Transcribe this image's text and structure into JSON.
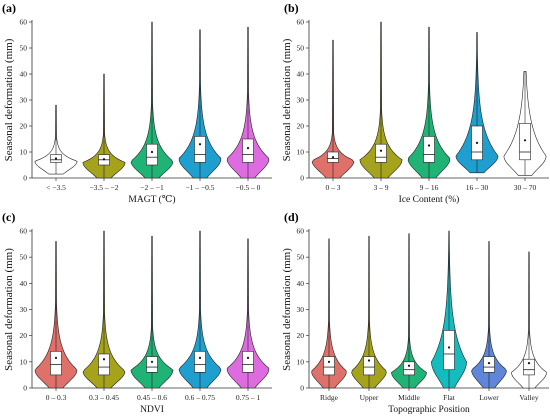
{
  "chart_data": [
    {
      "panel": "(a)",
      "type": "violin",
      "xlabel": "MAGT (℃)",
      "ylabel": "Seasonal deformation (mm)",
      "ylim": [
        0,
        60
      ],
      "yticks": [
        0,
        10,
        20,
        30,
        40,
        50,
        60
      ],
      "categories": [
        "< −3.5",
        "−3.5 – −2",
        "−2 – −1",
        "−1 – −0.5",
        "−0.5 – 0"
      ],
      "colors": [
        "#ffffff",
        "#a5a21c",
        "#1fb476",
        "#1f9ed0",
        "#df6be0"
      ],
      "stats": [
        {
          "min": 1.5,
          "q1": 6,
          "median": 7,
          "q3": 9,
          "max": 28,
          "mean": 7.5
        },
        {
          "min": 0,
          "q1": 5,
          "median": 7,
          "q3": 9,
          "max": 40,
          "mean": 7.2
        },
        {
          "min": 0,
          "q1": 5,
          "median": 8,
          "q3": 13,
          "max": 60,
          "mean": 10
        },
        {
          "min": 0,
          "q1": 6,
          "median": 9,
          "q3": 16,
          "max": 57,
          "mean": 13
        },
        {
          "min": 0,
          "q1": 6,
          "median": 9,
          "q3": 15,
          "max": 58,
          "mean": 11.5
        }
      ]
    },
    {
      "panel": "(b)",
      "type": "violin",
      "xlabel": "Ice Content (%)",
      "ylabel": "Seasonal deformation (mm)",
      "ylim": [
        0,
        60
      ],
      "yticks": [
        0,
        10,
        20,
        30,
        40,
        50,
        60
      ],
      "categories": [
        "0 – 3",
        "3 – 9",
        "9 – 16",
        "16 – 30",
        "30 – 70"
      ],
      "colors": [
        "#e0706a",
        "#a5a21c",
        "#1fb476",
        "#1f9ed0",
        "#ffffff"
      ],
      "stats": [
        {
          "min": 0,
          "q1": 6,
          "median": 7.5,
          "q3": 10,
          "max": 53,
          "mean": 8
        },
        {
          "min": 0,
          "q1": 6,
          "median": 8,
          "q3": 13,
          "max": 60,
          "mean": 10.5
        },
        {
          "min": 0,
          "q1": 6,
          "median": 9,
          "q3": 16,
          "max": 58,
          "mean": 12.5
        },
        {
          "min": 2,
          "q1": 7,
          "median": 10,
          "q3": 20,
          "max": 56,
          "mean": 13.5
        },
        {
          "min": 1,
          "q1": 7,
          "median": 10,
          "q3": 21,
          "max": 41,
          "mean": 14.5
        }
      ]
    },
    {
      "panel": "(c)",
      "type": "violin",
      "xlabel": "NDVI",
      "ylabel": "Seasonal deformation (mm)",
      "ylim": [
        0,
        60
      ],
      "yticks": [
        0,
        10,
        20,
        30,
        40,
        50,
        60
      ],
      "categories": [
        "0 – 0.3",
        "0.3 – 0.45",
        "0.45 – 0.6",
        "0.6 – 0.75",
        "0.75 – 1"
      ],
      "colors": [
        "#e0706a",
        "#a5a21c",
        "#1fb476",
        "#1f9ed0",
        "#df6be0"
      ],
      "stats": [
        {
          "min": 0,
          "q1": 5,
          "median": 9,
          "q3": 14,
          "max": 56,
          "mean": 11.5
        },
        {
          "min": 0,
          "q1": 5,
          "median": 8,
          "q3": 13,
          "max": 60,
          "mean": 11
        },
        {
          "min": 0,
          "q1": 6,
          "median": 8,
          "q3": 12,
          "max": 58,
          "mean": 10
        },
        {
          "min": 0,
          "q1": 6,
          "median": 9,
          "q3": 14,
          "max": 60,
          "mean": 11.5
        },
        {
          "min": 0,
          "q1": 6,
          "median": 9,
          "q3": 14,
          "max": 57,
          "mean": 11.5
        }
      ]
    },
    {
      "panel": "(d)",
      "type": "violin",
      "xlabel": "Topographic Position",
      "ylabel": "Seasonal deformation (mm)",
      "ylim": [
        0,
        60
      ],
      "yticks": [
        0,
        10,
        20,
        30,
        40,
        50,
        60
      ],
      "categories": [
        "Ridge",
        "Upper",
        "Middle",
        "Flat",
        "Lower",
        "Valley"
      ],
      "colors": [
        "#e0706a",
        "#a5a21c",
        "#1fb476",
        "#14bcc0",
        "#5f86d8",
        "#ffffff"
      ],
      "stats": [
        {
          "min": 0,
          "q1": 5,
          "median": 8,
          "q3": 12,
          "max": 57,
          "mean": 10
        },
        {
          "min": 0,
          "q1": 5,
          "median": 8,
          "q3": 12,
          "max": 58,
          "mean": 10.5
        },
        {
          "min": 0,
          "q1": 5,
          "median": 7,
          "q3": 10,
          "max": 59,
          "mean": 8.5
        },
        {
          "min": 0,
          "q1": 7,
          "median": 13,
          "q3": 22,
          "max": 60,
          "mean": 15.5
        },
        {
          "min": 0,
          "q1": 6,
          "median": 8,
          "q3": 12,
          "max": 56,
          "mean": 9.5
        },
        {
          "min": 0,
          "q1": 5,
          "median": 7,
          "q3": 11,
          "max": 52,
          "mean": 9.5
        }
      ]
    }
  ]
}
